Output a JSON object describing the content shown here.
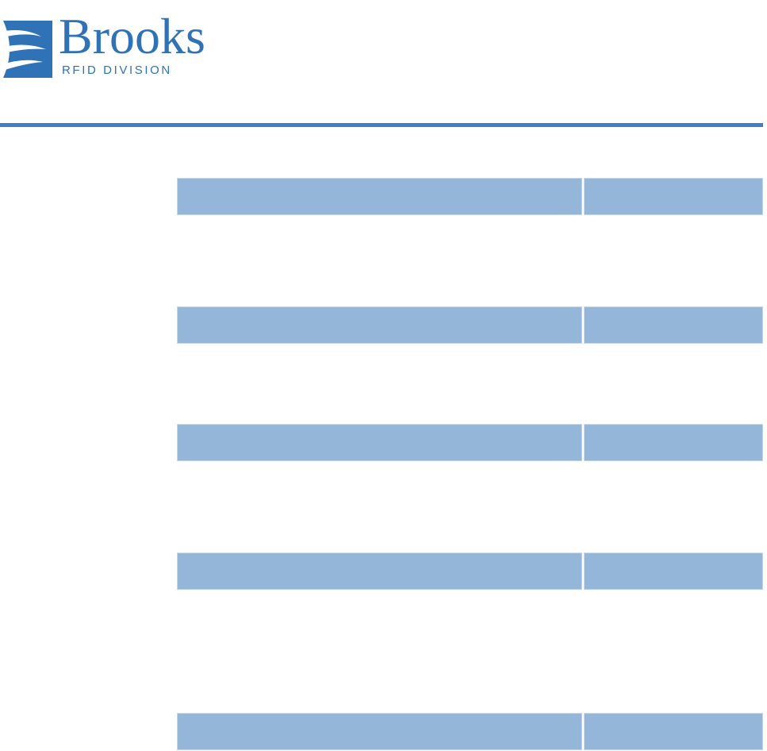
{
  "header": {
    "logo": {
      "name": "Brooks",
      "division": "RFID DIVISION"
    }
  }
}
